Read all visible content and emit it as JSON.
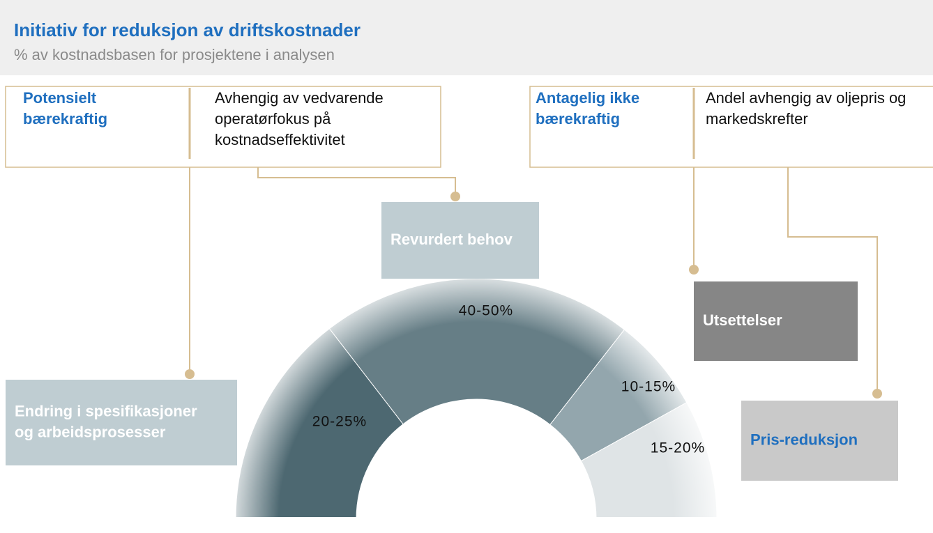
{
  "header": {
    "title": "Initiativ for reduksjon av driftskostnader",
    "subtitle": "% av kostnadsbasen for prosjektene i analysen"
  },
  "legend_boxes": [
    {
      "heading": "Potensielt bærekraftig",
      "text": "Avhengig av vedvarende operatørfokus på kostnadseffektivitet"
    },
    {
      "heading": "Antagelig ikke bærekraftig",
      "text": "Andel avhengig av oljepris og markedskrefter"
    }
  ],
  "segments": [
    {
      "label": "20-25%",
      "callout": "Endring i spesifikasjoner og arbeidsprosesser"
    },
    {
      "label": "40-50%",
      "callout": "Revurdert behov"
    },
    {
      "label": "10-15%",
      "callout": "Utsettelser"
    },
    {
      "label": "15-20%",
      "callout": "Pris-reduksjon"
    }
  ]
}
